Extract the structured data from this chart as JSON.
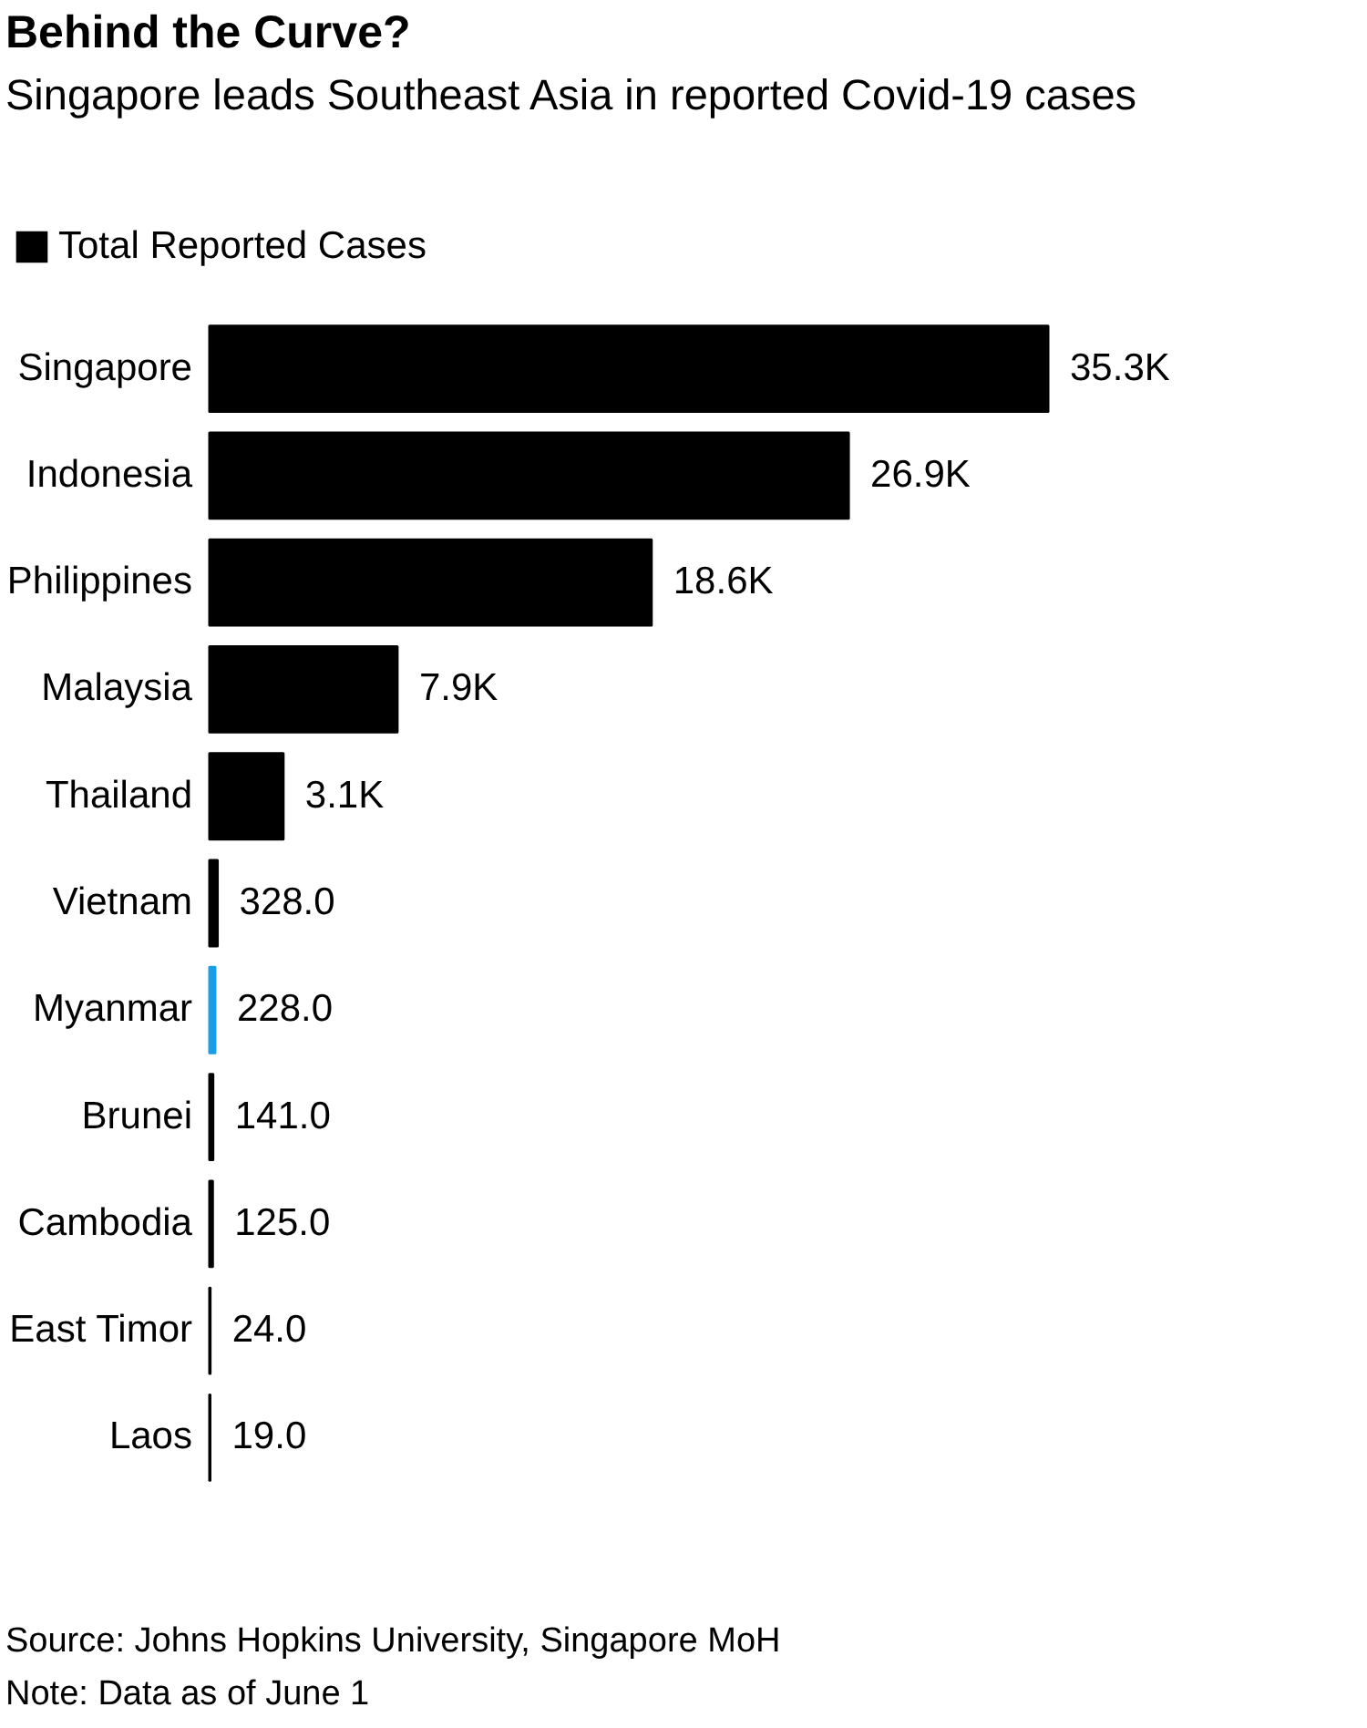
{
  "chart_data": {
    "type": "bar",
    "orientation": "horizontal",
    "title": "Behind the Curve?",
    "subtitle": "Singapore leads Southeast Asia in reported Covid-19 cases",
    "categories": [
      "Singapore",
      "Indonesia",
      "Philippines",
      "Malaysia",
      "Thailand",
      "Vietnam",
      "Myanmar",
      "Brunei",
      "Cambodia",
      "East Timor",
      "Laos"
    ],
    "series": [
      {
        "name": "Total Reported Cases",
        "color": "#000000",
        "values": [
          35300,
          26900,
          18600,
          7900,
          3100,
          328,
          228,
          141,
          125,
          24,
          19
        ],
        "colors": [
          "#000000",
          "#000000",
          "#000000",
          "#000000",
          "#000000",
          "#000000",
          "#1a9ee6",
          "#000000",
          "#000000",
          "#000000",
          "#000000"
        ],
        "value_labels": [
          "35.3K",
          "26.9K",
          "18.6K",
          "7.9K",
          "3.1K",
          "328.0",
          "228.0",
          "141.0",
          "125.0",
          "24.0",
          "19.0"
        ]
      }
    ],
    "legend": "top left",
    "annotations": [
      "Source: Johns Hopkins University, Singapore MoH",
      "Note: Data as of June 1"
    ]
  }
}
